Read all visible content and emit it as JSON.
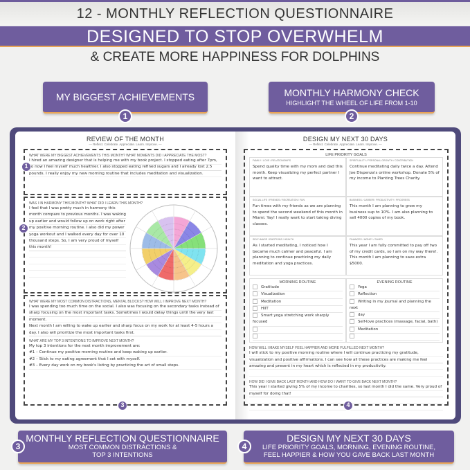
{
  "header": {
    "top_title": "12 - MONTHLY REFLECTION QUESTIONNAIRE",
    "band_title": "DESIGNED TO STOP OVERWHELM",
    "subtitle": "& CREATE MORE HAPPINESS FOR DOLPHINS"
  },
  "callouts": [
    {
      "num": "1",
      "title": "MY BIGGEST ACHIEVEMENTS",
      "sub": ""
    },
    {
      "num": "2",
      "title": "MONTHLY HARMONY CHECK",
      "sub": "HIGHLIGHT THE WHEEL OF LIFE FROM 1-10"
    },
    {
      "num": "3",
      "title": "MONTHLY REFLECTION QUESTIONNAIRE",
      "sub": "MOST COMMON DISTRACTIONS &",
      "sub2": "TOP 3 INTENTIONS"
    },
    {
      "num": "4",
      "title": "DESIGN MY NEXT 30 DAYS",
      "sub": "LIFE PRIORITY GOALS, MORNING, EVENING ROUTINE,",
      "sub2": "FEEL HAPPIER & HOW YOU GAVE BACK LAST MONTH"
    }
  ],
  "left_page": {
    "title": "REVIEW OF THE MONTH",
    "tagline": "— Reflect. Celebrate. Appreciate. Learn. Improve. —",
    "q1": "WHAT WERE MY BIGGEST ACHIEVEMENTS THIS MONTH? WHAT MOMENTS DID I APPRECIATE THE MOST?",
    "a1": "I hired an amazing designer that is helping me with my book project. I stopped eating after 7pm, so now I feel myself much healthier. I also stopped eating refined sugars and I already lost 2.5 pounds. I really enjoy my new morning routine that includes meditation and visualization.",
    "q2": "WAS I IN HARMONY THIS MONTH? WHAT DID I LEARN THIS MONTH?",
    "a2": "I feel that I was pretty much in harmony this month compare to previous months. I was waking up earlier and would follow up on work right after my positive morning routine. I also did my power yoga workout and I walked every day for over 10 thousand steps. So, I am very proud of myself this month!",
    "q3": "WHAT WERE MY MOST COMMON DISTRACTIONS, MENTAL BLOCKS? HOW WILL I IMPROVE NEXT MONTH?",
    "a3": "I was spending too much time on the social. I also was focusing on the secondary tasks instead of sharp focusing on the most important tasks. Sometimes I would delay things until the very last moment.",
    "a3b": "Next month I am willing to wake up earlier and sharp focus on my work for at least 4-5 hours a day. I also will prioritize the most important tasks first.",
    "q4": "WHAT ARE MY TOP 3 INTENTIONS TO IMPROVE NEXT MONTH?",
    "a4": [
      "My top 3 intentions for the next month improvement are:",
      "#1 – Continue my positive morning routine and keep waking up earlier.",
      "#2 – Stick to my eating agreement that I set with myself.",
      "#3 – Every day work on my book's listing by practicing the art of small steps."
    ],
    "wheel_colors": [
      "#f4a6d6",
      "#8a86e6",
      "#86e07a",
      "#7fe3f0",
      "#f5ef8a",
      "#f7c48a",
      "#ef6a6a",
      "#a88ae0",
      "#f2cf6a",
      "#9dbce8",
      "#a9e8a6",
      "#d8c2f0"
    ]
  },
  "right_page": {
    "title": "DESIGN MY NEXT 30 DAYS",
    "tagline": "— Reflect. Celebrate. Appreciate. Learn. Improve. —",
    "goals_title": "LIFE PRIORITY GOALS",
    "goals": [
      {
        "cat": "FAMILY / LOVE / RELATIONSHIPS",
        "text": "Spend quality time with my mom and dad this month. Keep visualizing my perfect partner I want to attract."
      },
      {
        "cat": "SPIRITUALITY / PERSONAL GROWTH / CONTRIBUTION",
        "text": "Continue meditating daily twice a day. Attend Joe Dispenza's online workshop. Donate 5% of my income to Planting Trees Charity."
      },
      {
        "cat": "SOCIAL LIFE / FRIENDS / RECREATION / FUN",
        "text": "Fun times with my friends as we are planning to spend the second weekend of this month in Miami. Yay! I really want to start taking diving classes."
      },
      {
        "cat": "BUSINESS / CAREER / PRODUCTIVITY / PROGRESS",
        "text": "This month I am planning to grow my business sup to 10%. I am also planning to sell 4000 copies of my book."
      },
      {
        "cat": "SELF-IMAGE / EMOTIONS / HEALTH",
        "text": "As I started meditating, I noticed how I became much calmer and peaceful. I am planning to continue practicing my daily meditation and yoga practices."
      },
      {
        "cat": "FINANCES / MONEY / SAVED",
        "text": "This year I am fully committed to pay off two of my credit cards, so I am on my way there!. This month I am planning to save extra $5000."
      }
    ],
    "morning_title": "MORNING ROUTINE",
    "evening_title": "EVENING ROUTINE",
    "morning": [
      "Gratitude",
      "Visualization",
      "Meditation",
      "HIIT",
      "Smart yoga stretching work sharply focused",
      "",
      ""
    ],
    "evening": [
      "Yoga",
      "Reflection",
      "Writing in my journal and planning the next",
      "day",
      "Self-love practices (massage, facial, bath)",
      "Meditation",
      ""
    ],
    "q5": "HOW WILL I MAKE MYSELF FEEL HAPPIER AND MORE FULFILLED NEXT MONTH?",
    "a5": "I will stick to my positive morning routine where I will continue practicing my gratitude, visualization and positive affirmations. I can see how all these practices are making me feel amazing and present in my heart which is reflected in my productivity.",
    "q6": "HOW DID I GIVE BACK LAST MONTH AND HOW DO I WANT TO GIVE BACK NEXT MONTH?",
    "a6": "This year I started giving 5% of my income to charities, so last month I did the same. Very proud of myself for doing that!"
  },
  "colors": {
    "purple": "#6f5d9e",
    "orange": "#e9a455",
    "cover": "#4f4a7b"
  }
}
